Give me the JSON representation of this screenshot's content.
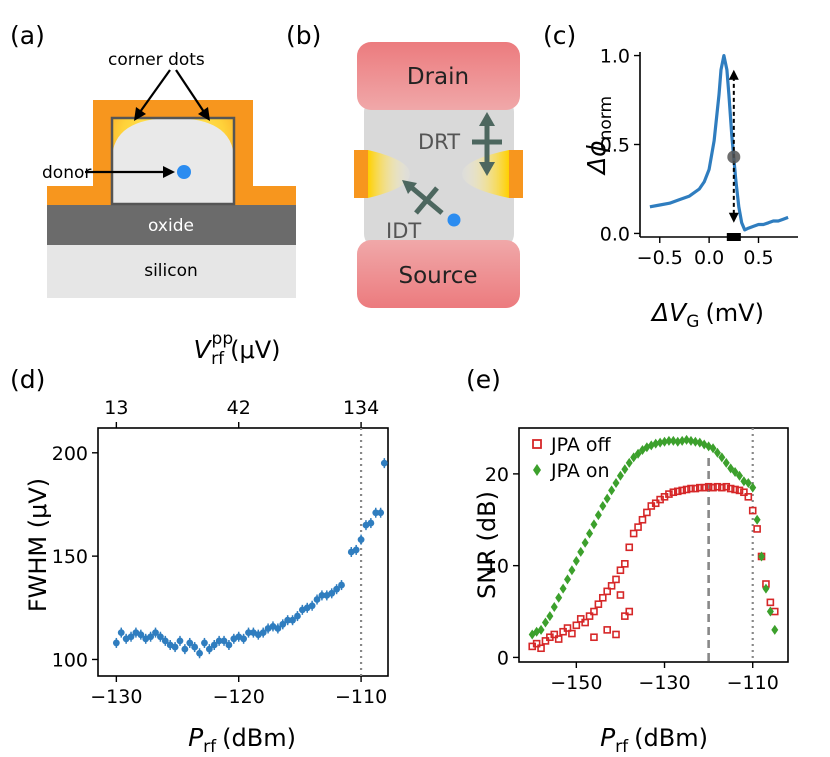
{
  "panels": {
    "a": "(a)",
    "b": "(b)",
    "c": "(c)",
    "d": "(d)",
    "e": "(e)"
  },
  "schematic_a": {
    "corner_dots": "corner dots",
    "donor": "donor",
    "oxide": "oxide",
    "silicon": "silicon",
    "colors": {
      "gate": "#f7961e",
      "oxide": "#6b6b6b",
      "silicon": "#e6e6e6",
      "donor": "#2b8cf0"
    }
  },
  "schematic_b": {
    "drain": "Drain",
    "source": "Source",
    "drt": "DRT",
    "idt": "IDT",
    "colors": {
      "lead": "#ec7b7e",
      "channel": "#d9d9d9",
      "arrow": "#4d675f"
    }
  },
  "chart_data": [
    {
      "panel": "c",
      "type": "line",
      "xlabel_symbol": "ΔV",
      "xlabel_sub": "G",
      "xlabel_unit": "(mV)",
      "ylabel_symbol": "Δϕ",
      "ylabel_sub": "norm",
      "x_ticks": [
        "−0.5",
        "0.0",
        "0.5"
      ],
      "y_ticks": [
        "0.0",
        "0.5",
        "1.0"
      ],
      "xlim": [
        -0.7,
        0.9
      ],
      "ylim": [
        -0.02,
        1.02
      ],
      "color": "#2f7dbf",
      "x": [
        -0.6,
        -0.5,
        -0.4,
        -0.3,
        -0.2,
        -0.1,
        -0.05,
        0.0,
        0.05,
        0.1,
        0.12,
        0.15,
        0.18,
        0.2,
        0.23,
        0.27,
        0.3,
        0.33,
        0.36,
        0.4,
        0.45,
        0.5,
        0.55,
        0.6,
        0.65,
        0.7,
        0.75,
        0.8
      ],
      "y": [
        0.15,
        0.16,
        0.17,
        0.19,
        0.21,
        0.25,
        0.29,
        0.36,
        0.52,
        0.78,
        0.92,
        1.0,
        0.92,
        0.78,
        0.55,
        0.3,
        0.15,
        0.06,
        0.02,
        0.03,
        0.04,
        0.05,
        0.05,
        0.06,
        0.07,
        0.07,
        0.08,
        0.09
      ],
      "marker": {
        "x": 0.25,
        "y": 0.43
      }
    },
    {
      "panel": "d",
      "type": "scatter",
      "xlabel_symbol": "P",
      "xlabel_sub": "rf",
      "xlabel_unit": "(dBm)",
      "ylabel": "FWHM (μV)",
      "top_xlabel_symbol": "V",
      "top_xlabel_sub": "rf",
      "top_xlabel_sup": "pp",
      "top_xlabel_unit": "(μV)",
      "x_ticks": [
        "−130",
        "−120",
        "−110"
      ],
      "y_ticks": [
        "100",
        "150",
        "200"
      ],
      "top_ticks": [
        {
          "label": "13",
          "at": -130
        },
        {
          "label": "42",
          "at": -120
        },
        {
          "label": "134",
          "at": -110
        }
      ],
      "xlim": [
        -131.5,
        -107.8
      ],
      "ylim": [
        92,
        212
      ],
      "vline": -110,
      "color": "#2f7dbf",
      "x": [
        -130.0,
        -129.6,
        -129.2,
        -128.8,
        -128.4,
        -128.0,
        -127.6,
        -127.2,
        -126.8,
        -126.4,
        -126.0,
        -125.6,
        -125.2,
        -124.8,
        -124.4,
        -124.0,
        -123.6,
        -123.2,
        -122.8,
        -122.4,
        -122.0,
        -121.6,
        -121.2,
        -120.8,
        -120.4,
        -120.0,
        -119.6,
        -119.2,
        -118.8,
        -118.4,
        -118.0,
        -117.6,
        -117.2,
        -116.8,
        -116.4,
        -116.0,
        -115.6,
        -115.2,
        -114.8,
        -114.4,
        -114.0,
        -113.6,
        -113.2,
        -112.8,
        -112.4,
        -112.0,
        -111.6,
        -110.8,
        -110.4,
        -110.0,
        -109.6,
        -109.2,
        -108.8,
        -108.4,
        -108.1
      ],
      "y": [
        108,
        113,
        110,
        111,
        113,
        112,
        110,
        111,
        113,
        111,
        109,
        107,
        106,
        109,
        105,
        108,
        106,
        103,
        108,
        105,
        107,
        109,
        109,
        107,
        110,
        111,
        110,
        113,
        113,
        112,
        113,
        115,
        116,
        115,
        117,
        119,
        119,
        121,
        124,
        125,
        126,
        129,
        131,
        131,
        132,
        134,
        136,
        152,
        153,
        158,
        165,
        166,
        171,
        171,
        195
      ]
    },
    {
      "panel": "e",
      "type": "scatter",
      "xlabel_symbol": "P",
      "xlabel_sub": "rf",
      "xlabel_unit": "(dBm)",
      "ylabel": "SNR (dB)",
      "x_ticks": [
        "−150",
        "−130",
        "−110"
      ],
      "y_ticks": [
        "0",
        "10",
        "20"
      ],
      "xlim": [
        -163,
        -102
      ],
      "ylim": [
        -0.5,
        25
      ],
      "vline_dashed": -120,
      "vline_dotted": -110,
      "series": [
        {
          "name": "JPA off",
          "color": "#d62728",
          "marker": "square-open",
          "x": [
            -160,
            -159,
            -158,
            -157,
            -156,
            -155,
            -154,
            -153,
            -152,
            -151,
            -150,
            -149,
            -148,
            -147,
            -146,
            -145,
            -144,
            -143,
            -142,
            -141,
            -140,
            -139,
            -138,
            -137,
            -136,
            -135,
            -134,
            -133,
            -132,
            -131,
            -130,
            -129,
            -128,
            -127,
            -126,
            -125,
            -124,
            -123,
            -122,
            -121,
            -120,
            -119,
            -118,
            -117,
            -116,
            -115,
            -114,
            -113,
            -112,
            -111,
            -110,
            -109,
            -108,
            -107,
            -106,
            -105,
            -146,
            -143,
            -141,
            -139,
            -140,
            -138
          ],
          "y": [
            1.2,
            1.5,
            1.0,
            1.8,
            2.2,
            2.5,
            2.0,
            2.8,
            3.2,
            2.6,
            3.5,
            4.2,
            3.8,
            4.5,
            5.0,
            5.8,
            6.5,
            7.2,
            7.8,
            8.5,
            9.5,
            10.2,
            12.0,
            13.5,
            14.2,
            15.0,
            15.8,
            16.5,
            16.8,
            17.2,
            17.5,
            17.8,
            18.0,
            18.1,
            18.2,
            18.3,
            18.4,
            18.4,
            18.5,
            18.5,
            18.6,
            18.5,
            18.6,
            18.5,
            18.6,
            18.4,
            18.3,
            18.2,
            18.0,
            17.5,
            16.0,
            14.0,
            11.0,
            8.0,
            6.0,
            5.0,
            2.2,
            3.0,
            2.5,
            4.5,
            6.8,
            5.0
          ]
        },
        {
          "name": "JPA on",
          "color": "#3ca02c",
          "marker": "diamond",
          "x": [
            -160,
            -159,
            -158,
            -157,
            -156,
            -155,
            -154,
            -153,
            -152,
            -151,
            -150,
            -149,
            -148,
            -147,
            -146,
            -145,
            -144,
            -143,
            -142,
            -141,
            -140,
            -139,
            -138,
            -137,
            -136,
            -135,
            -134,
            -133,
            -132,
            -131,
            -130,
            -129,
            -128,
            -127,
            -126,
            -125,
            -124,
            -123,
            -122,
            -121,
            -120,
            -119,
            -118,
            -117,
            -116,
            -115,
            -114,
            -113,
            -112,
            -111,
            -110,
            -109,
            -108,
            -107,
            -106,
            -105
          ],
          "y": [
            2.5,
            2.8,
            3.0,
            3.8,
            4.5,
            5.5,
            6.5,
            7.5,
            8.5,
            9.5,
            10.5,
            11.5,
            12.5,
            13.5,
            14.5,
            15.5,
            16.5,
            17.3,
            18.2,
            19.0,
            19.8,
            20.5,
            21.2,
            21.8,
            22.2,
            22.6,
            22.9,
            23.1,
            23.3,
            23.4,
            23.5,
            23.6,
            23.6,
            23.5,
            23.6,
            23.7,
            23.6,
            23.5,
            23.4,
            23.2,
            23.0,
            22.8,
            22.3,
            21.8,
            21.2,
            20.6,
            20.2,
            19.8,
            19.2,
            19.0,
            18.5,
            15.0,
            11.0,
            7.5,
            5.0,
            3.0
          ]
        }
      ]
    }
  ]
}
